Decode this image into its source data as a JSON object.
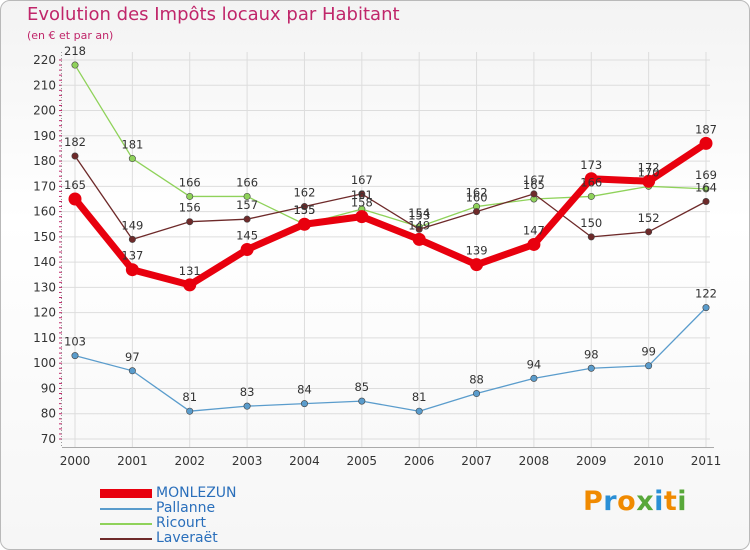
{
  "title": "Evolution des Impôts locaux par Habitant",
  "subtitle": "(en € et par an)",
  "logo_text": "Proxiti",
  "colors": {
    "title": "#c0266a",
    "axis": "#c0266a",
    "grid": "#dddddd",
    "legend_text": "#2a6fbb"
  },
  "chart_data": {
    "type": "line",
    "x": [
      "2000",
      "2001",
      "2002",
      "2003",
      "2004",
      "2005",
      "2006",
      "2007",
      "2008",
      "2009",
      "2010",
      "2011"
    ],
    "ylim": [
      70,
      220
    ],
    "yticks": [
      70,
      80,
      90,
      100,
      110,
      120,
      130,
      140,
      150,
      160,
      170,
      180,
      190,
      200,
      210,
      220
    ],
    "grid": true,
    "legend_position": "bottom-left",
    "series": [
      {
        "name": "MONLEZUN",
        "color": "#e8000e",
        "values": [
          165,
          137,
          131,
          145,
          155,
          158,
          149,
          139,
          147,
          173,
          172,
          187
        ],
        "labels": [
          "165",
          "137",
          "131",
          "145",
          "155",
          "158",
          "149",
          "139",
          "147",
          "173",
          "172",
          "187"
        ]
      },
      {
        "name": "Pallanne",
        "color": "#5a9ccc",
        "values": [
          103,
          97,
          81,
          83,
          84,
          85,
          81,
          88,
          94,
          98,
          99,
          122
        ],
        "labels": [
          "103",
          "97",
          "81",
          "83",
          "84",
          "85",
          "81",
          "88",
          "94",
          "98",
          "99",
          "122"
        ]
      },
      {
        "name": "Ricourt",
        "color": "#8fd25a",
        "values": [
          218,
          181,
          166,
          166,
          155,
          161,
          154,
          162,
          165,
          166,
          170,
          169
        ],
        "labels": [
          "218",
          "181",
          "166",
          "166",
          "155",
          "161",
          "154",
          "162",
          "165",
          "166",
          "170",
          "169"
        ]
      },
      {
        "name": "Laveraët",
        "color": "#6e2a2a",
        "values": [
          182,
          149,
          156,
          157,
          162,
          167,
          153,
          160,
          167,
          150,
          152,
          164
        ],
        "labels": [
          "182",
          "149",
          "156",
          "157",
          "162",
          "167",
          "153",
          "160",
          "167",
          "150",
          "152",
          "164"
        ]
      }
    ]
  }
}
